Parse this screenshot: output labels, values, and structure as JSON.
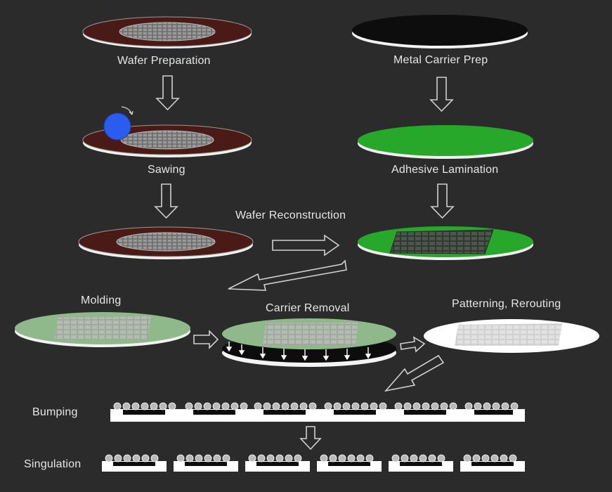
{
  "steps": {
    "wafer_preparation": "Wafer Preparation",
    "metal_carrier_prep": "Metal Carrier Prep",
    "sawing": "Sawing",
    "adhesive_lamination": "Adhesive Lamination",
    "wafer_reconstruction": "Wafer Reconstruction",
    "molding": "Molding",
    "carrier_removal": "Carrier Removal",
    "patterning_rerouting": "Patterning, Rerouting",
    "bumping": "Bumping",
    "singulation": "Singulation"
  },
  "colors": {
    "background": "#2b2b2b",
    "wafer_brown": "#4a1a16",
    "carrier_black": "#0d0d0d",
    "adhesive_green": "#27a82a",
    "mold_green": "#8fb98b",
    "saw_blade_blue": "#2a5cf0",
    "substrate_white": "#ffffff",
    "die_gray": "#8a8a8a"
  }
}
